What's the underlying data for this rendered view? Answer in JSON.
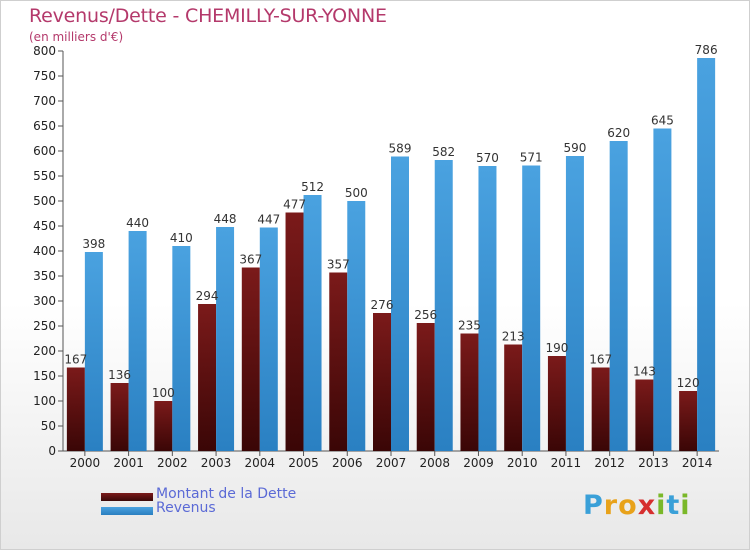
{
  "header": {
    "title": "Revenus/Dette - CHEMILLY-SUR-YONNE",
    "subtitle": "(en milliers d'€)"
  },
  "legend": {
    "debt_label": "Montant de la Dette",
    "revenue_label": "Revenus"
  },
  "logo": {
    "letters": [
      "P",
      "r",
      "o",
      "x",
      "i",
      "t",
      "i"
    ],
    "colors": [
      "#3aa0d8",
      "#e8a21a",
      "#e8a21a",
      "#d62f2f",
      "#7ab829",
      "#3aa0d8",
      "#7ab829"
    ]
  },
  "colors": {
    "debt": "#7b1a1a",
    "revenue": "#4aa2e0",
    "axis": "#555555",
    "grid": "#dddddd"
  },
  "chart_data": {
    "type": "bar",
    "title": "Revenus/Dette - CHEMILLY-SUR-YONNE",
    "subtitle": "(en milliers d'€)",
    "categories": [
      "2000",
      "2001",
      "2002",
      "2003",
      "2004",
      "2005",
      "2006",
      "2007",
      "2008",
      "2009",
      "2010",
      "2011",
      "2012",
      "2013",
      "2014"
    ],
    "series": [
      {
        "name": "Montant de la Dette",
        "values": [
          167,
          136,
          100,
          294,
          367,
          477,
          357,
          276,
          256,
          235,
          213,
          190,
          167,
          143,
          120
        ]
      },
      {
        "name": "Revenus",
        "values": [
          398,
          440,
          410,
          448,
          447,
          512,
          500,
          589,
          582,
          570,
          571,
          590,
          620,
          645,
          786
        ]
      }
    ],
    "ylim": [
      0,
      800
    ],
    "yticks": [
      0,
      50,
      100,
      150,
      200,
      250,
      300,
      350,
      400,
      450,
      500,
      550,
      600,
      650,
      700,
      750,
      800
    ],
    "grid": false,
    "legend_position": "bottom-left",
    "data_labels": true
  }
}
